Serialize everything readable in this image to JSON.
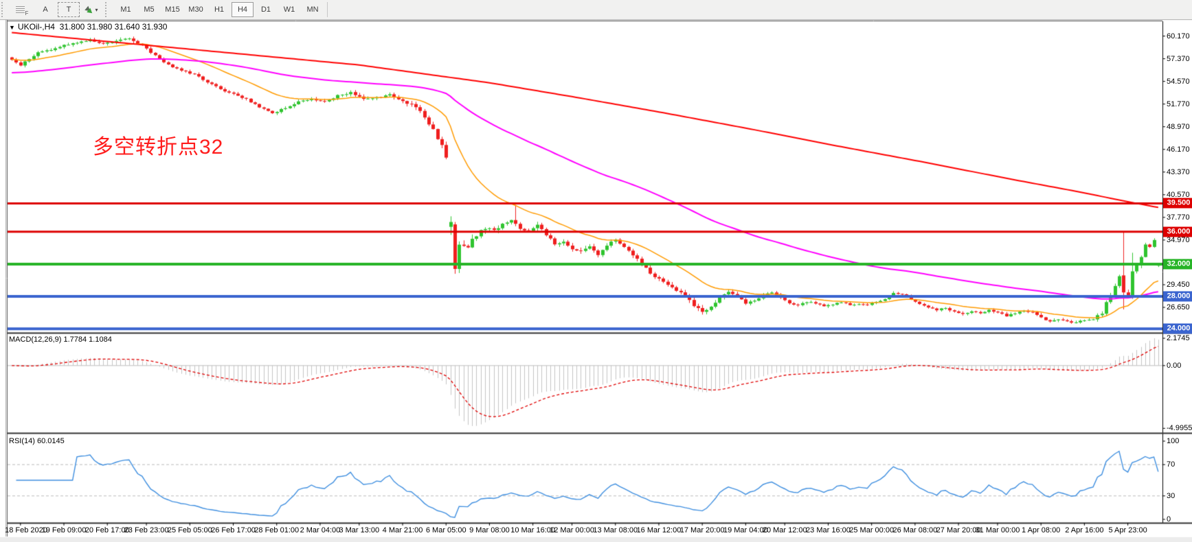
{
  "toolbar": {
    "tool_buttons": [
      {
        "name": "indicator-list",
        "label": "F"
      },
      {
        "name": "font-tool",
        "label": "A"
      },
      {
        "name": "text-label-tool",
        "label": "T"
      },
      {
        "name": "object-style-tool",
        "label": "▾"
      }
    ],
    "timeframes": [
      "M1",
      "M5",
      "M15",
      "M30",
      "H1",
      "H4",
      "D1",
      "W1",
      "MN"
    ],
    "active_timeframe": "H4"
  },
  "chart_header": {
    "marker": "▼",
    "symbol_period": "UKOil-,H4",
    "ohlc_text": "31.800 31.980 31.640 31.930"
  },
  "indicator_labels": {
    "macd": "MACD(12,26,9) 1.7784 1.1084",
    "rsi": "RSI(14) 60.0145"
  },
  "annotation": {
    "text": "多空转折点32",
    "color": "#ff1c1c"
  },
  "colors": {
    "bull_candle": "#2fc42f",
    "bear_candle": "#ef1f1f",
    "ma_fast": "#ff9b00",
    "ma_mid": "#ff00ff",
    "ma_slow": "#ff0000",
    "macd_histogram": "#c4c4c4",
    "macd_signal": "#e00000",
    "rsi_line": "#3f8fe0",
    "guide_dash": "#bcbcbc",
    "level_red": "#dd0000",
    "level_green": "#27b427",
    "level_blue": "#3a64cf"
  },
  "chart_data": {
    "type": "candlestick",
    "symbol": "UKOil-",
    "period": "H4",
    "current_bar": {
      "open": 31.8,
      "high": 31.98,
      "low": 31.64,
      "close": 31.93
    },
    "displayed_price_range": [
      23.6,
      62.0
    ],
    "y_axis_ticks": [
      {
        "label": "60.170",
        "value": 60.17
      },
      {
        "label": "57.370",
        "value": 57.37
      },
      {
        "label": "54.570",
        "value": 54.57
      },
      {
        "label": "51.770",
        "value": 51.77
      },
      {
        "label": "48.970",
        "value": 48.97
      },
      {
        "label": "46.170",
        "value": 46.17
      },
      {
        "label": "43.370",
        "value": 43.37
      },
      {
        "label": "40.570",
        "value": 40.57
      },
      {
        "label": "37.770",
        "value": 37.77
      },
      {
        "label": "34.970",
        "value": 34.97
      },
      {
        "label": "29.450",
        "value": 29.45
      },
      {
        "label": "26.650",
        "value": 26.65
      }
    ],
    "x_axis_labels": [
      {
        "label": "18 Feb 2020",
        "i": 2
      },
      {
        "label": "19 Feb 09:00",
        "i": 12
      },
      {
        "label": "20 Feb 17:00",
        "i": 22
      },
      {
        "label": "23 Feb 23:00",
        "i": 31
      },
      {
        "label": "25 Feb 05:00",
        "i": 41
      },
      {
        "label": "26 Feb 17:00",
        "i": 51
      },
      {
        "label": "28 Feb 01:00",
        "i": 61
      },
      {
        "label": "2 Mar 04:00",
        "i": 71
      },
      {
        "label": "3 Mar 13:00",
        "i": 80
      },
      {
        "label": "4 Mar 21:00",
        "i": 90
      },
      {
        "label": "6 Mar 05:00",
        "i": 100
      },
      {
        "label": "9 Mar 08:00",
        "i": 110
      },
      {
        "label": "10 Mar 16:00",
        "i": 120
      },
      {
        "label": "12 Mar 00:00",
        "i": 129
      },
      {
        "label": "13 Mar 08:00",
        "i": 139
      },
      {
        "label": "16 Mar 12:00",
        "i": 149
      },
      {
        "label": "17 Mar 20:00",
        "i": 159
      },
      {
        "label": "19 Mar 04:00",
        "i": 169
      },
      {
        "label": "20 Mar 12:00",
        "i": 178
      },
      {
        "label": "23 Mar 16:00",
        "i": 188
      },
      {
        "label": "25 Mar 00:00",
        "i": 198
      },
      {
        "label": "26 Mar 08:00",
        "i": 208
      },
      {
        "label": "27 Mar 20:00",
        "i": 218
      },
      {
        "label": "31 Mar 00:00",
        "i": 227
      },
      {
        "label": "1 Apr 08:00",
        "i": 237
      },
      {
        "label": "2 Apr 16:00",
        "i": 247
      },
      {
        "label": "5 Apr 23:00",
        "i": 257
      }
    ],
    "price_levels": [
      {
        "price": 39.5,
        "label": "39.500",
        "color": "#dd0000",
        "width": 3
      },
      {
        "price": 36.0,
        "label": "36.000",
        "color": "#dd0000",
        "width": 3
      },
      {
        "price": 32.0,
        "label": "32.000",
        "color": "#27b427",
        "width": 4
      },
      {
        "price": 28.0,
        "label": "28.000",
        "color": "#3a64cf",
        "width": 4
      },
      {
        "price": 24.0,
        "label": "24.000",
        "color": "#3a64cf",
        "width": 4
      }
    ],
    "candles": {
      "count": 265,
      "close_anchors": [
        [
          0,
          57.2
        ],
        [
          2,
          56.6
        ],
        [
          4,
          57.4
        ],
        [
          6,
          58.1
        ],
        [
          9,
          58.5
        ],
        [
          12,
          59.0
        ],
        [
          15,
          59.4
        ],
        [
          18,
          59.7
        ],
        [
          21,
          59.2
        ],
        [
          24,
          59.6
        ],
        [
          27,
          59.9
        ],
        [
          30,
          59.0
        ],
        [
          33,
          57.8
        ],
        [
          36,
          56.6
        ],
        [
          39,
          56.0
        ],
        [
          42,
          55.4
        ],
        [
          45,
          54.5
        ],
        [
          48,
          53.6
        ],
        [
          51,
          53.0
        ],
        [
          54,
          52.4
        ],
        [
          57,
          51.4
        ],
        [
          60,
          50.6
        ],
        [
          63,
          51.3
        ],
        [
          66,
          52.1
        ],
        [
          69,
          52.4
        ],
        [
          72,
          52.0
        ],
        [
          75,
          52.8
        ],
        [
          78,
          53.2
        ],
        [
          81,
          52.4
        ],
        [
          84,
          52.6
        ],
        [
          87,
          52.9
        ],
        [
          90,
          52.2
        ],
        [
          93,
          51.4
        ],
        [
          95,
          50.2
        ],
        [
          97,
          48.6
        ],
        [
          99,
          46.6
        ],
        [
          100,
          45.3
        ],
        [
          101,
          37.2
        ],
        [
          102,
          31.4
        ],
        [
          103,
          34.4
        ],
        [
          105,
          34.3
        ],
        [
          107,
          35.6
        ],
        [
          109,
          36.4
        ],
        [
          111,
          36.1
        ],
        [
          113,
          37.1
        ],
        [
          115,
          37.5
        ],
        [
          117,
          36.4
        ],
        [
          119,
          36.2
        ],
        [
          121,
          36.9
        ],
        [
          123,
          35.6
        ],
        [
          125,
          34.5
        ],
        [
          127,
          34.9
        ],
        [
          129,
          33.9
        ],
        [
          131,
          33.5
        ],
        [
          133,
          34.1
        ],
        [
          135,
          33.1
        ],
        [
          137,
          34.3
        ],
        [
          139,
          35.1
        ],
        [
          141,
          34.2
        ],
        [
          143,
          33.1
        ],
        [
          145,
          32.0
        ],
        [
          147,
          30.9
        ],
        [
          149,
          30.1
        ],
        [
          151,
          29.3
        ],
        [
          153,
          28.8
        ],
        [
          155,
          28.1
        ],
        [
          157,
          26.8
        ],
        [
          159,
          26.1
        ],
        [
          161,
          26.6
        ],
        [
          163,
          27.9
        ],
        [
          165,
          28.5
        ],
        [
          167,
          28.0
        ],
        [
          169,
          27.2
        ],
        [
          171,
          27.4
        ],
        [
          173,
          28.2
        ],
        [
          175,
          28.5
        ],
        [
          177,
          27.9
        ],
        [
          179,
          27.2
        ],
        [
          181,
          26.9
        ],
        [
          183,
          27.3
        ],
        [
          185,
          27.2
        ],
        [
          187,
          26.8
        ],
        [
          189,
          27.0
        ],
        [
          191,
          27.3
        ],
        [
          193,
          26.9
        ],
        [
          195,
          27.1
        ],
        [
          197,
          27.0
        ],
        [
          199,
          27.3
        ],
        [
          201,
          27.7
        ],
        [
          203,
          28.4
        ],
        [
          205,
          28.3
        ],
        [
          207,
          27.6
        ],
        [
          209,
          27.1
        ],
        [
          211,
          26.6
        ],
        [
          213,
          26.3
        ],
        [
          215,
          26.6
        ],
        [
          217,
          26.1
        ],
        [
          219,
          25.8
        ],
        [
          221,
          26.2
        ],
        [
          223,
          25.9
        ],
        [
          225,
          26.3
        ],
        [
          227,
          26.0
        ],
        [
          229,
          25.6
        ],
        [
          231,
          25.9
        ],
        [
          233,
          26.2
        ],
        [
          235,
          26.0
        ],
        [
          237,
          25.4
        ],
        [
          239,
          24.9
        ],
        [
          241,
          25.2
        ],
        [
          243,
          25.0
        ],
        [
          245,
          24.7
        ],
        [
          247,
          25.1
        ],
        [
          249,
          25.2
        ],
        [
          251,
          26.0
        ],
        [
          252,
          27.2
        ],
        [
          253,
          28.3
        ],
        [
          254,
          29.4
        ],
        [
          255,
          30.5
        ],
        [
          256,
          28.5
        ],
        [
          257,
          28.1
        ],
        [
          258,
          31.1
        ],
        [
          259,
          31.8
        ],
        [
          260,
          33.0
        ],
        [
          261,
          34.5
        ],
        [
          262,
          34.1
        ],
        [
          263,
          34.9
        ],
        [
          264,
          31.93
        ]
      ],
      "volatility_anchors": [
        [
          0,
          0.3
        ],
        [
          30,
          0.34
        ],
        [
          60,
          0.3
        ],
        [
          90,
          0.4
        ],
        [
          97,
          0.55
        ],
        [
          100,
          0.7
        ],
        [
          104,
          0.85
        ],
        [
          112,
          0.6
        ],
        [
          126,
          0.5
        ],
        [
          146,
          0.42
        ],
        [
          158,
          0.5
        ],
        [
          170,
          0.32
        ],
        [
          200,
          0.26
        ],
        [
          225,
          0.26
        ],
        [
          244,
          0.32
        ],
        [
          252,
          0.55
        ],
        [
          258,
          0.6
        ],
        [
          264,
          0.2
        ]
      ],
      "overrides": [
        {
          "i": 101,
          "o": 36.6,
          "h": 37.9,
          "l": 35.6,
          "c": 37.2
        },
        {
          "i": 102,
          "o": 36.9,
          "h": 37.2,
          "l": 30.8,
          "c": 31.4
        },
        {
          "i": 103,
          "o": 31.4,
          "h": 34.8,
          "l": 30.9,
          "c": 34.4
        },
        {
          "i": 116,
          "h": 39.3
        },
        {
          "i": 256,
          "o": 30.6,
          "h": 36.0,
          "l": 26.4,
          "c": 28.5
        },
        {
          "i": 258,
          "o": 28.1,
          "h": 33.4,
          "l": 27.7,
          "c": 31.1
        },
        {
          "i": 264,
          "o": 31.8,
          "h": 31.98,
          "l": 31.64,
          "c": 31.93
        }
      ]
    },
    "moving_averages": [
      {
        "name": "fast-ma-orange",
        "color": "#ff9b00",
        "width": 1.5,
        "mode": "ema",
        "period": 21,
        "seed": 57.3
      },
      {
        "name": "mid-ma-magenta",
        "color": "#ff00ff",
        "width": 2,
        "mode": "ema",
        "period": 89,
        "seed": 55.6
      },
      {
        "name": "slow-ma-red",
        "color": "#ff0000",
        "width": 2,
        "mode": "anchors",
        "anchors": [
          [
            0,
            60.6
          ],
          [
            40,
            58.6
          ],
          [
            80,
            56.6
          ],
          [
            110,
            54.4
          ],
          [
            130,
            52.6
          ],
          [
            150,
            50.7
          ],
          [
            170,
            48.7
          ],
          [
            190,
            46.6
          ],
          [
            210,
            44.6
          ],
          [
            230,
            42.5
          ],
          [
            245,
            41.0
          ],
          [
            258,
            39.6
          ],
          [
            264,
            39.0
          ]
        ]
      }
    ],
    "macd": {
      "label": "MACD(12,26,9)",
      "fast": 12,
      "slow": 26,
      "signal": 9,
      "current_macd": 1.7784,
      "current_signal": 1.1084,
      "ticks": [
        {
          "label": "2.1745",
          "value": 2.1745
        },
        {
          "label": "0.00",
          "value": 0
        },
        {
          "label": "-4.9955",
          "value": -4.9955
        }
      ],
      "display_range": [
        -5.25,
        2.45
      ]
    },
    "rsi": {
      "label": "RSI(14)",
      "period": 14,
      "current": 60.0145,
      "ticks": [
        {
          "label": "100",
          "value": 100
        },
        {
          "label": "70",
          "value": 70
        },
        {
          "label": "30",
          "value": 30
        },
        {
          "label": "0",
          "value": 0
        }
      ],
      "guides": [
        70,
        30
      ],
      "display_range": [
        0,
        100
      ]
    }
  }
}
